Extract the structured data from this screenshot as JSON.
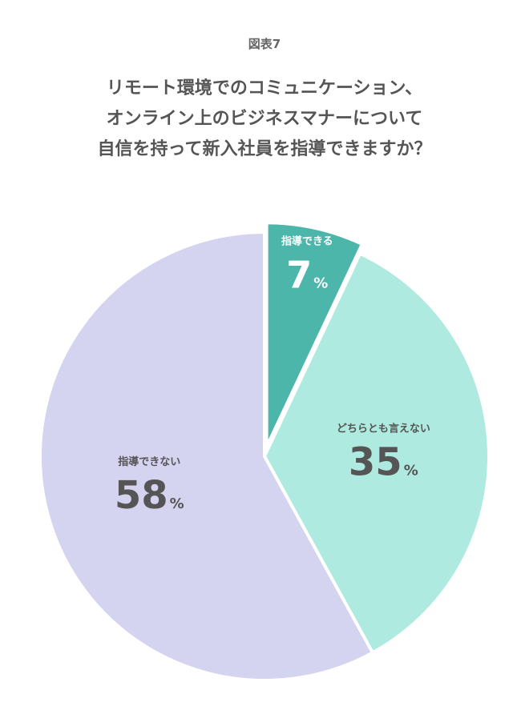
{
  "figure_label": "図表7",
  "title_lines": [
    "リモート環境でのコミュニケーション、",
    "オンライン上のビジネスマナーについて",
    "自信を持って新入社員を指導できますか？"
  ],
  "chart_data": {
    "type": "pie",
    "title": "リモート環境でのコミュニケーション、オンライン上のビジネスマナーについて自信を持って新入社員を指導できますか？",
    "categories": [
      "指導できる",
      "どちらとも言えない",
      "指導できない"
    ],
    "values": [
      7,
      35,
      58
    ],
    "unit": "%",
    "colors": [
      "#4db6ab",
      "#aeeae0",
      "#d4d3f0"
    ],
    "label_colors": [
      "#ffffff",
      "#555555",
      "#555555"
    ],
    "exploded": [
      true,
      false,
      false
    ],
    "start_angle": "12 o'clock",
    "direction": "clockwise",
    "legend": "none"
  }
}
